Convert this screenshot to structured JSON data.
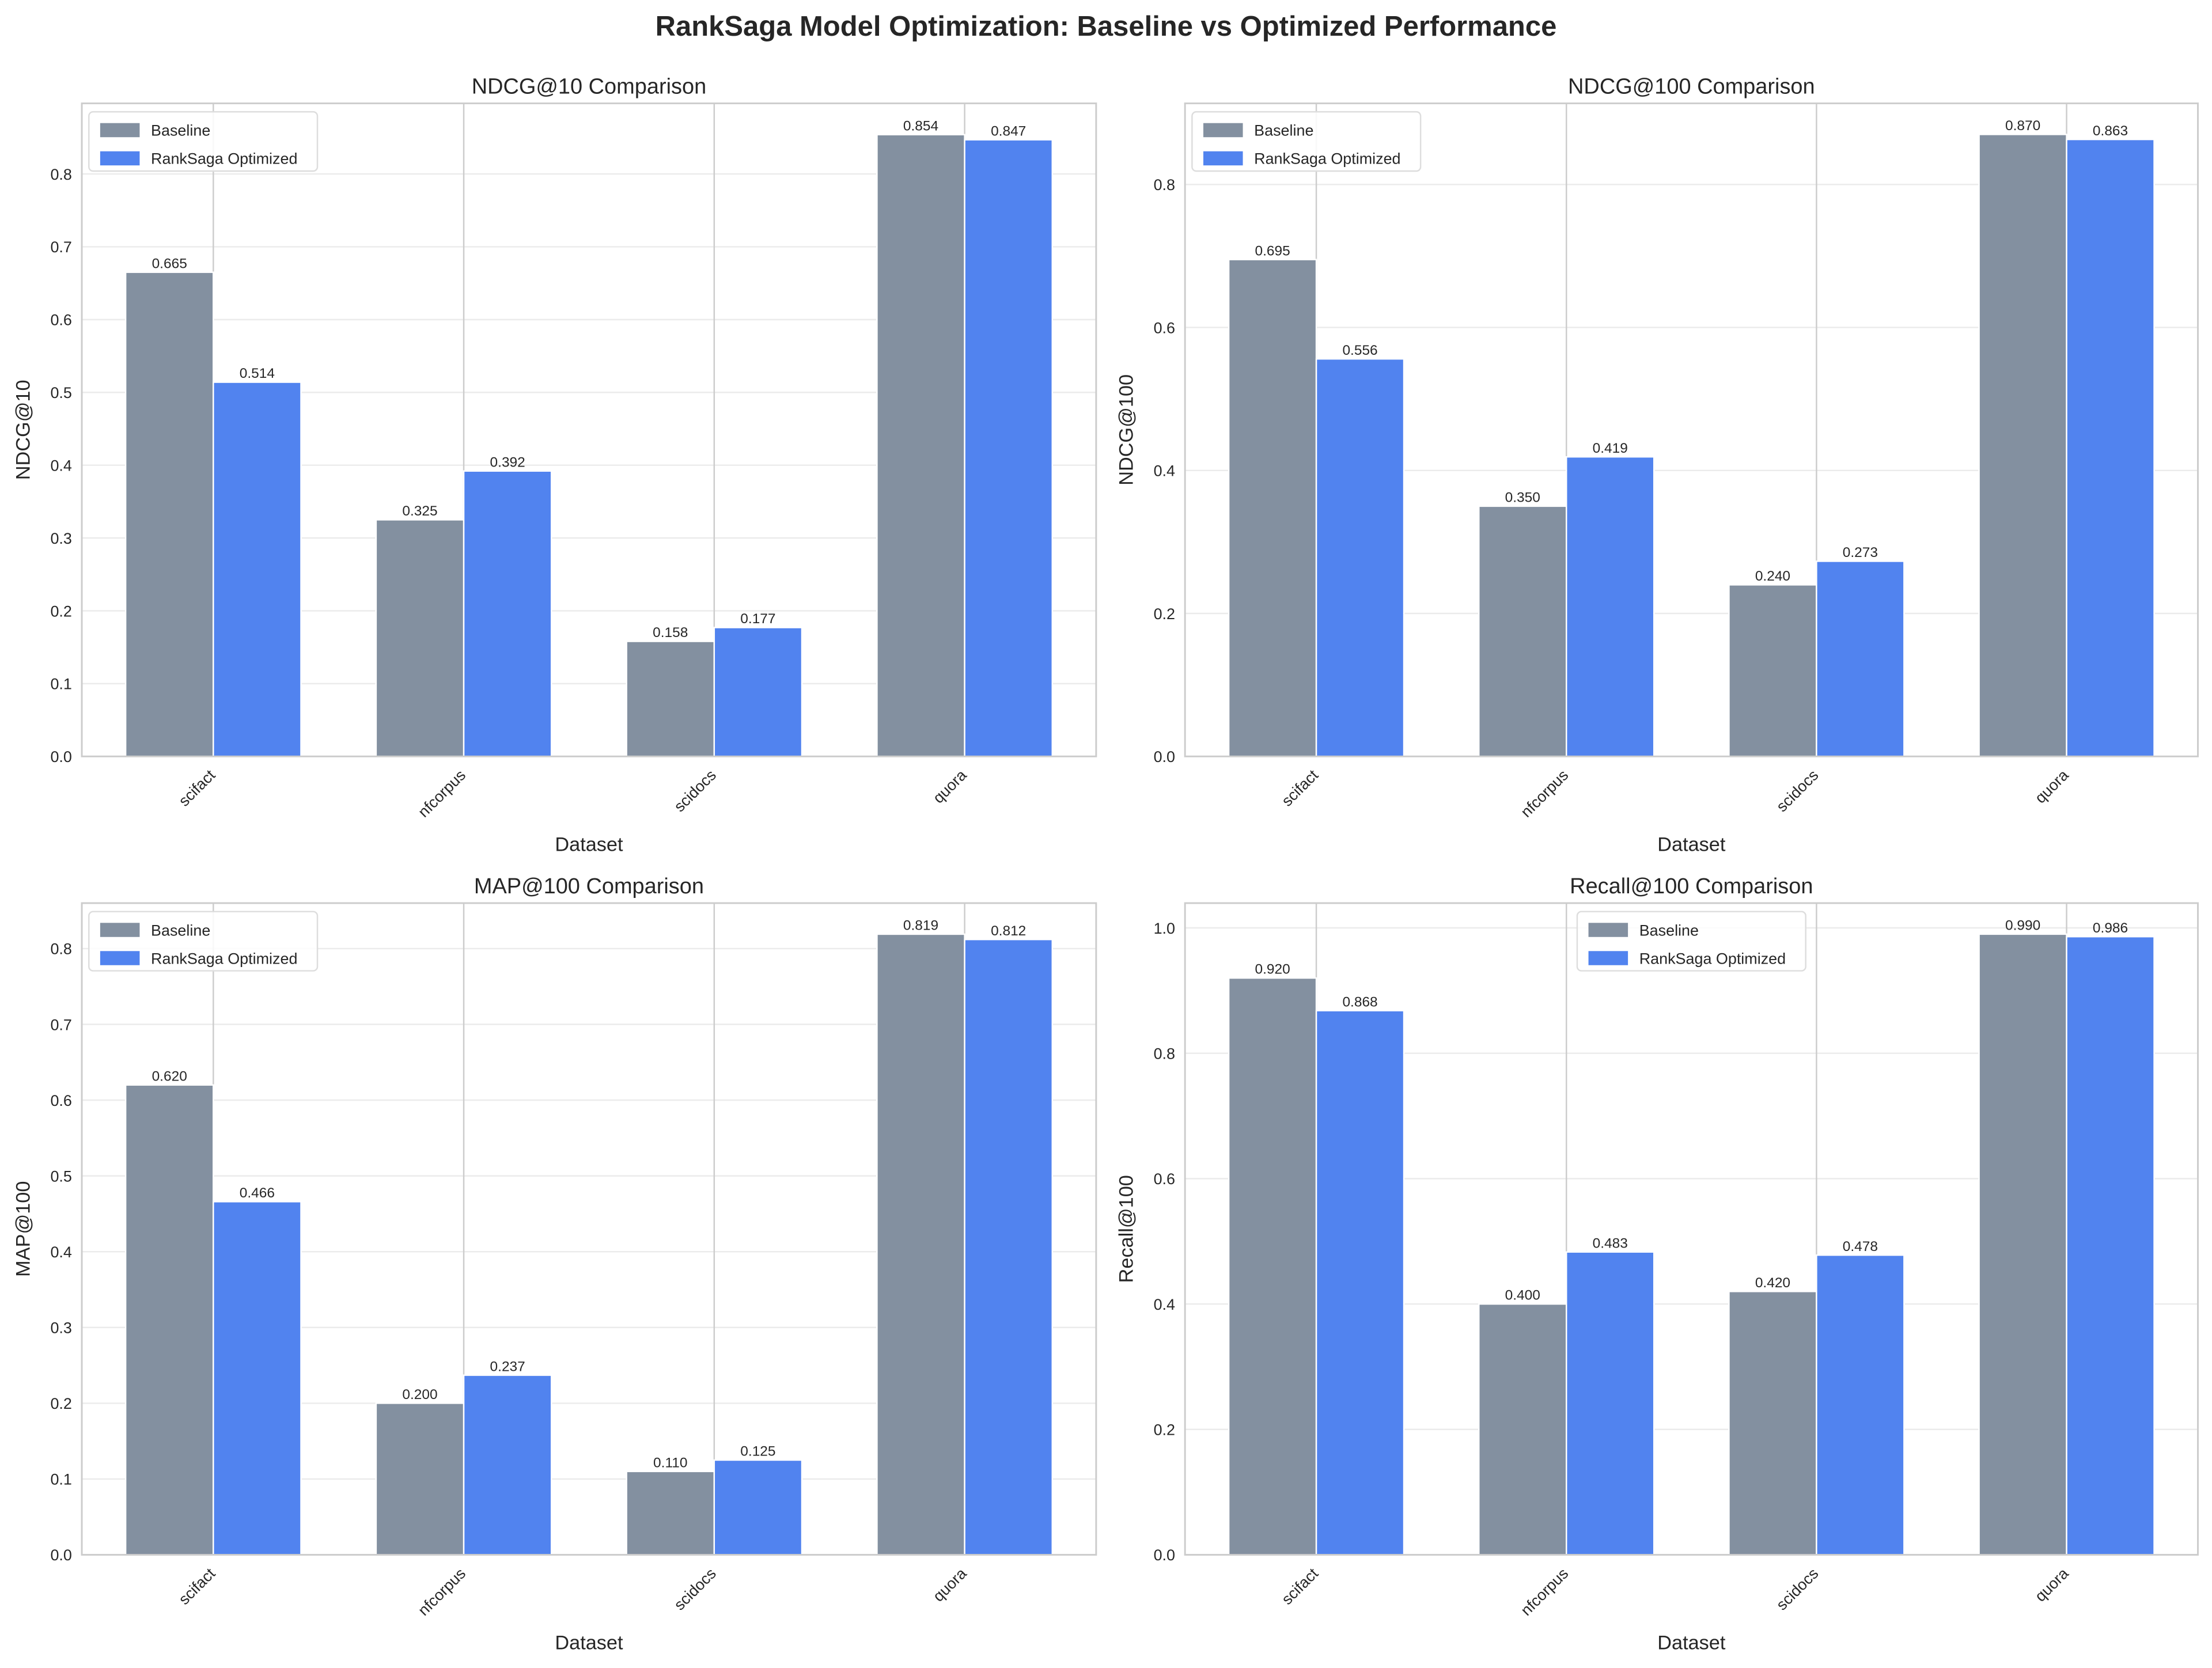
{
  "title": "RankSaga Model Optimization: Baseline vs Optimized Performance",
  "colors": {
    "Baseline": "#708090",
    "RankSaga Optimized": "#2563eb"
  },
  "chart_data": [
    {
      "type": "bar",
      "title": "NDCG@10 Comparison",
      "xlabel": "Dataset",
      "ylabel": "NDCG@10",
      "categories": [
        "scifact",
        "nfcorpus",
        "scidocs",
        "quora"
      ],
      "series": [
        {
          "name": "Baseline",
          "values": [
            0.665,
            0.325,
            0.158,
            0.854
          ],
          "labels": [
            "0.665",
            "0.325",
            "0.158",
            "0.854"
          ]
        },
        {
          "name": "RankSaga Optimized",
          "values": [
            0.514,
            0.392,
            0.177,
            0.847
          ],
          "labels": [
            "0.514",
            "0.392",
            "0.177",
            "0.847"
          ]
        }
      ],
      "ylim": [
        0,
        0.897
      ],
      "yticks": [
        "0.0",
        "0.1",
        "0.2",
        "0.3",
        "0.4",
        "0.5",
        "0.6",
        "0.7",
        "0.8"
      ],
      "grid": true,
      "legend": "top-left"
    },
    {
      "type": "bar",
      "title": "NDCG@100 Comparison",
      "xlabel": "Dataset",
      "ylabel": "NDCG@100",
      "categories": [
        "scifact",
        "nfcorpus",
        "scidocs",
        "quora"
      ],
      "series": [
        {
          "name": "Baseline",
          "values": [
            0.695,
            0.35,
            0.24,
            0.87
          ],
          "labels": [
            "0.695",
            "0.350",
            "0.240",
            "0.870"
          ]
        },
        {
          "name": "RankSaga Optimized",
          "values": [
            0.556,
            0.419,
            0.273,
            0.863
          ],
          "labels": [
            "0.556",
            "0.419",
            "0.273",
            "0.863"
          ]
        }
      ],
      "ylim": [
        0,
        0.9135
      ],
      "yticks": [
        "0.0",
        "0.2",
        "0.4",
        "0.6",
        "0.8"
      ],
      "grid": true,
      "legend": "top-left"
    },
    {
      "type": "bar",
      "title": "MAP@100 Comparison",
      "xlabel": "Dataset",
      "ylabel": "MAP@100",
      "categories": [
        "scifact",
        "nfcorpus",
        "scidocs",
        "quora"
      ],
      "series": [
        {
          "name": "Baseline",
          "values": [
            0.62,
            0.2,
            0.11,
            0.819
          ],
          "labels": [
            "0.620",
            "0.200",
            "0.110",
            "0.819"
          ]
        },
        {
          "name": "RankSaga Optimized",
          "values": [
            0.466,
            0.237,
            0.125,
            0.812
          ],
          "labels": [
            "0.466",
            "0.237",
            "0.125",
            "0.812"
          ]
        }
      ],
      "ylim": [
        0,
        0.86
      ],
      "yticks": [
        "0.0",
        "0.1",
        "0.2",
        "0.3",
        "0.4",
        "0.5",
        "0.6",
        "0.7",
        "0.8"
      ],
      "grid": true,
      "legend": "top-left"
    },
    {
      "type": "bar",
      "title": "Recall@100 Comparison",
      "xlabel": "Dataset",
      "ylabel": "Recall@100",
      "categories": [
        "scifact",
        "nfcorpus",
        "scidocs",
        "quora"
      ],
      "series": [
        {
          "name": "Baseline",
          "values": [
            0.92,
            0.4,
            0.42,
            0.99
          ],
          "labels": [
            "0.920",
            "0.400",
            "0.420",
            "0.990"
          ]
        },
        {
          "name": "RankSaga Optimized",
          "values": [
            0.868,
            0.483,
            0.478,
            0.986
          ],
          "labels": [
            "0.868",
            "0.483",
            "0.478",
            "0.986"
          ]
        }
      ],
      "ylim": [
        0,
        1.0395
      ],
      "yticks": [
        "0.0",
        "0.2",
        "0.4",
        "0.6",
        "0.8",
        "1.0"
      ],
      "grid": true,
      "legend": "top-center"
    }
  ]
}
